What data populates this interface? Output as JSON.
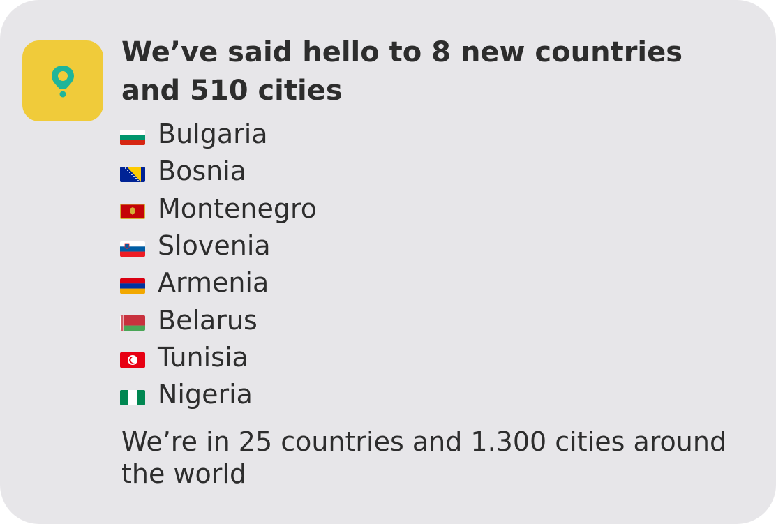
{
  "card": {
    "title": "We’ve said hello to 8 new countries and 510 cities",
    "icon": "map-pin-icon",
    "accent_color": "#f0cb3a",
    "icon_color": "#1fb59a",
    "countries": [
      {
        "name": "Bulgaria",
        "flag": "bulgaria-flag-icon"
      },
      {
        "name": "Bosnia",
        "flag": "bosnia-flag-icon"
      },
      {
        "name": "Montenegro",
        "flag": "montenegro-flag-icon"
      },
      {
        "name": "Slovenia",
        "flag": "slovenia-flag-icon"
      },
      {
        "name": "Armenia",
        "flag": "armenia-flag-icon"
      },
      {
        "name": "Belarus",
        "flag": "belarus-flag-icon"
      },
      {
        "name": "Tunisia",
        "flag": "tunisia-flag-icon"
      },
      {
        "name": "Nigeria",
        "flag": "nigeria-flag-icon"
      }
    ],
    "summary": "We’re in 25 countries and 1.300 cities around the world"
  }
}
